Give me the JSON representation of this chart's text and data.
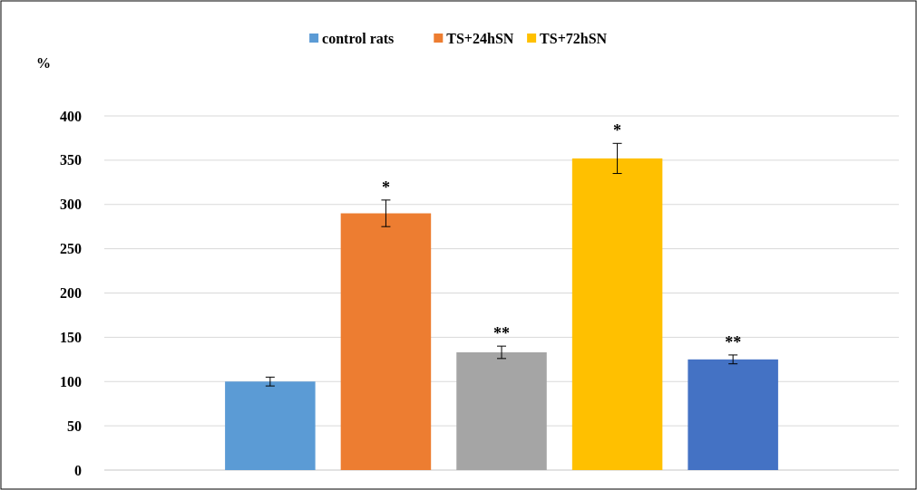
{
  "chart_data": {
    "type": "bar",
    "ylabel": "%",
    "categories": [
      null
    ],
    "series": [
      {
        "name": "control rats",
        "color": "#5b9bd5",
        "values": [
          100
        ],
        "errors": [
          5
        ]
      },
      {
        "name": "TS+24hSN",
        "color": "#ed7d31",
        "values": [
          290
        ],
        "errors": [
          15
        ]
      },
      {
        "color": "#a5a5a5",
        "values": [
          133
        ],
        "errors": [
          7
        ]
      },
      {
        "name": "TS+72hSN",
        "color": "#ffc000",
        "values": [
          352
        ],
        "errors": [
          17
        ]
      },
      {
        "color": "#4472c4",
        "values": [
          125
        ],
        "errors": [
          5
        ]
      }
    ],
    "annotations": [
      "*",
      "**",
      "*",
      "**"
    ],
    "ylim": [
      0,
      400
    ],
    "yticks": [
      0,
      50,
      100,
      150,
      200,
      250,
      300,
      350,
      400
    ],
    "grid": "y",
    "legend": "top"
  }
}
